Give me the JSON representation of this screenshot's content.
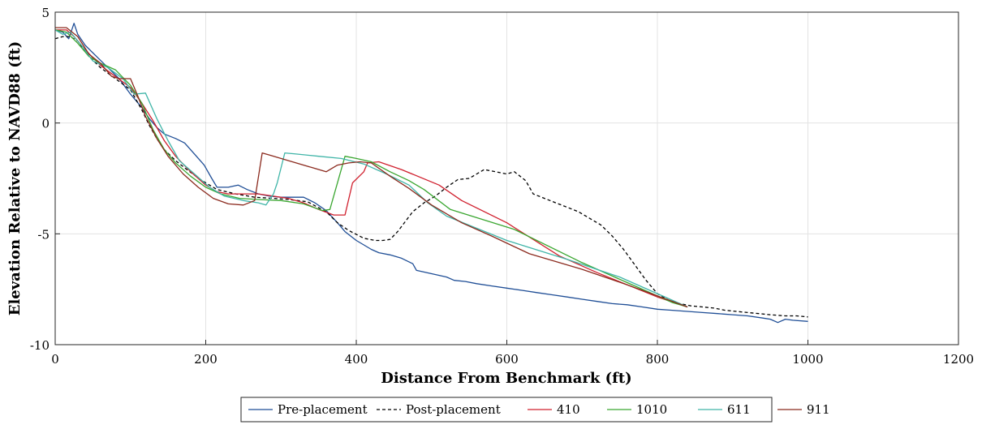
{
  "chart_data": {
    "type": "line",
    "title": "",
    "xlabel": "Distance From Benchmark (ft)",
    "ylabel": "Elevation Relative to NAVD88 (ft)",
    "xlim": [
      0,
      1200
    ],
    "ylim": [
      -10,
      5
    ],
    "xticks": [
      0,
      200,
      400,
      600,
      800,
      1000,
      1200
    ],
    "yticks": [
      5,
      0,
      -5,
      -10
    ],
    "xtick_labels": [
      "0",
      "200",
      "400",
      "600",
      "800",
      "1000",
      "1200"
    ],
    "ytick_labels": [
      "5",
      "0",
      "-5",
      "-10"
    ],
    "grid": true,
    "legend_position": "bottom-center",
    "series": [
      {
        "name": "Pre-placement",
        "color": "#1f4e96",
        "dash": "solid",
        "points": [
          [
            0,
            4.2
          ],
          [
            10,
            4.1
          ],
          [
            18,
            3.8
          ],
          [
            25,
            4.5
          ],
          [
            30,
            4.0
          ],
          [
            40,
            3.5
          ],
          [
            55,
            3.0
          ],
          [
            70,
            2.5
          ],
          [
            85,
            2.0
          ],
          [
            100,
            1.3
          ],
          [
            115,
            0.7
          ],
          [
            125,
            0.2
          ],
          [
            135,
            -0.2
          ],
          [
            145,
            -0.5
          ],
          [
            160,
            -0.7
          ],
          [
            172,
            -0.9
          ],
          [
            185,
            -1.4
          ],
          [
            198,
            -1.9
          ],
          [
            208,
            -2.5
          ],
          [
            215,
            -2.9
          ],
          [
            230,
            -2.9
          ],
          [
            243,
            -2.8
          ],
          [
            255,
            -3.0
          ],
          [
            270,
            -3.2
          ],
          [
            285,
            -3.3
          ],
          [
            300,
            -3.35
          ],
          [
            320,
            -3.35
          ],
          [
            330,
            -3.35
          ],
          [
            345,
            -3.6
          ],
          [
            360,
            -3.95
          ],
          [
            375,
            -4.5
          ],
          [
            385,
            -4.9
          ],
          [
            400,
            -5.3
          ],
          [
            410,
            -5.5
          ],
          [
            420,
            -5.7
          ],
          [
            430,
            -5.85
          ],
          [
            445,
            -5.95
          ],
          [
            460,
            -6.1
          ],
          [
            475,
            -6.35
          ],
          [
            480,
            -6.65
          ],
          [
            500,
            -6.8
          ],
          [
            520,
            -6.95
          ],
          [
            530,
            -7.1
          ],
          [
            545,
            -7.15
          ],
          [
            560,
            -7.25
          ],
          [
            580,
            -7.35
          ],
          [
            600,
            -7.45
          ],
          [
            620,
            -7.55
          ],
          [
            640,
            -7.65
          ],
          [
            660,
            -7.75
          ],
          [
            680,
            -7.85
          ],
          [
            700,
            -7.95
          ],
          [
            720,
            -8.05
          ],
          [
            740,
            -8.15
          ],
          [
            760,
            -8.2
          ],
          [
            780,
            -8.3
          ],
          [
            800,
            -8.4
          ],
          [
            820,
            -8.45
          ],
          [
            840,
            -8.5
          ],
          [
            860,
            -8.55
          ],
          [
            880,
            -8.6
          ],
          [
            900,
            -8.65
          ],
          [
            920,
            -8.7
          ],
          [
            940,
            -8.8
          ],
          [
            950,
            -8.85
          ],
          [
            960,
            -9.0
          ],
          [
            970,
            -8.85
          ],
          [
            980,
            -8.9
          ],
          [
            1000,
            -8.95
          ]
        ]
      },
      {
        "name": "Post-placement",
        "color": "#000000",
        "dash": "dashed",
        "points": [
          [
            0,
            3.8
          ],
          [
            10,
            3.9
          ],
          [
            20,
            3.9
          ],
          [
            30,
            3.7
          ],
          [
            45,
            3.0
          ],
          [
            60,
            2.5
          ],
          [
            80,
            2.0
          ],
          [
            100,
            1.5
          ],
          [
            115,
            0.6
          ],
          [
            125,
            -0.1
          ],
          [
            135,
            -0.7
          ],
          [
            145,
            -1.2
          ],
          [
            160,
            -1.7
          ],
          [
            175,
            -2.1
          ],
          [
            195,
            -2.6
          ],
          [
            215,
            -3.0
          ],
          [
            240,
            -3.2
          ],
          [
            265,
            -3.35
          ],
          [
            290,
            -3.4
          ],
          [
            310,
            -3.45
          ],
          [
            335,
            -3.55
          ],
          [
            360,
            -4.0
          ],
          [
            375,
            -4.5
          ],
          [
            390,
            -4.85
          ],
          [
            410,
            -5.2
          ],
          [
            425,
            -5.3
          ],
          [
            435,
            -5.3
          ],
          [
            445,
            -5.25
          ],
          [
            455,
            -4.9
          ],
          [
            465,
            -4.45
          ],
          [
            475,
            -4.0
          ],
          [
            490,
            -3.6
          ],
          [
            505,
            -3.3
          ],
          [
            520,
            -2.9
          ],
          [
            535,
            -2.55
          ],
          [
            550,
            -2.5
          ],
          [
            560,
            -2.3
          ],
          [
            570,
            -2.1
          ],
          [
            585,
            -2.2
          ],
          [
            600,
            -2.3
          ],
          [
            610,
            -2.2
          ],
          [
            625,
            -2.6
          ],
          [
            635,
            -3.2
          ],
          [
            650,
            -3.4
          ],
          [
            665,
            -3.6
          ],
          [
            680,
            -3.8
          ],
          [
            695,
            -4.0
          ],
          [
            710,
            -4.3
          ],
          [
            725,
            -4.6
          ],
          [
            740,
            -5.1
          ],
          [
            755,
            -5.7
          ],
          [
            770,
            -6.4
          ],
          [
            785,
            -7.1
          ],
          [
            800,
            -7.7
          ],
          [
            815,
            -8.0
          ],
          [
            830,
            -8.15
          ],
          [
            845,
            -8.25
          ],
          [
            860,
            -8.3
          ],
          [
            875,
            -8.35
          ],
          [
            890,
            -8.45
          ],
          [
            905,
            -8.5
          ],
          [
            920,
            -8.55
          ],
          [
            935,
            -8.6
          ],
          [
            950,
            -8.65
          ],
          [
            970,
            -8.7
          ],
          [
            985,
            -8.7
          ],
          [
            1000,
            -8.75
          ]
        ]
      },
      {
        "name": "410",
        "color": "#d0202e",
        "dash": "solid",
        "points": [
          [
            0,
            4.2
          ],
          [
            15,
            4.2
          ],
          [
            25,
            3.9
          ],
          [
            40,
            3.3
          ],
          [
            60,
            2.6
          ],
          [
            80,
            2.1
          ],
          [
            100,
            1.6
          ],
          [
            115,
            0.9
          ],
          [
            130,
            0.1
          ],
          [
            145,
            -0.8
          ],
          [
            160,
            -1.5
          ],
          [
            180,
            -2.2
          ],
          [
            200,
            -2.8
          ],
          [
            215,
            -3.1
          ],
          [
            230,
            -3.2
          ],
          [
            250,
            -3.2
          ],
          [
            270,
            -3.2
          ],
          [
            290,
            -3.3
          ],
          [
            310,
            -3.4
          ],
          [
            330,
            -3.6
          ],
          [
            350,
            -3.9
          ],
          [
            370,
            -4.15
          ],
          [
            385,
            -4.15
          ],
          [
            395,
            -2.7
          ],
          [
            410,
            -2.2
          ],
          [
            415,
            -1.8
          ],
          [
            430,
            -1.75
          ],
          [
            460,
            -2.1
          ],
          [
            510,
            -2.8
          ],
          [
            540,
            -3.5
          ],
          [
            600,
            -4.5
          ],
          [
            670,
            -6.0
          ],
          [
            720,
            -6.75
          ],
          [
            800,
            -7.85
          ],
          [
            840,
            -8.3
          ]
        ]
      },
      {
        "name": "1010",
        "color": "#3aa630",
        "dash": "solid",
        "points": [
          [
            0,
            4.2
          ],
          [
            15,
            4.1
          ],
          [
            30,
            3.6
          ],
          [
            45,
            3.0
          ],
          [
            60,
            2.7
          ],
          [
            80,
            2.4
          ],
          [
            100,
            1.7
          ],
          [
            115,
            0.9
          ],
          [
            130,
            -0.3
          ],
          [
            145,
            -1.2
          ],
          [
            160,
            -1.8
          ],
          [
            180,
            -2.4
          ],
          [
            200,
            -2.9
          ],
          [
            220,
            -3.2
          ],
          [
            245,
            -3.4
          ],
          [
            270,
            -3.45
          ],
          [
            300,
            -3.5
          ],
          [
            330,
            -3.65
          ],
          [
            355,
            -3.95
          ],
          [
            365,
            -3.9
          ],
          [
            385,
            -1.5
          ],
          [
            400,
            -1.6
          ],
          [
            420,
            -1.75
          ],
          [
            445,
            -2.2
          ],
          [
            470,
            -2.6
          ],
          [
            490,
            -3.0
          ],
          [
            525,
            -3.9
          ],
          [
            610,
            -4.8
          ],
          [
            700,
            -6.3
          ],
          [
            760,
            -7.2
          ],
          [
            820,
            -8.1
          ],
          [
            840,
            -8.3
          ]
        ]
      },
      {
        "name": "611",
        "color": "#40b5a8",
        "dash": "solid",
        "points": [
          [
            0,
            4.2
          ],
          [
            10,
            4.0
          ],
          [
            20,
            4.1
          ],
          [
            35,
            3.5
          ],
          [
            50,
            2.8
          ],
          [
            70,
            2.5
          ],
          [
            90,
            2.0
          ],
          [
            105,
            1.3
          ],
          [
            120,
            1.35
          ],
          [
            135,
            0.2
          ],
          [
            150,
            -0.8
          ],
          [
            165,
            -1.7
          ],
          [
            185,
            -2.3
          ],
          [
            205,
            -2.9
          ],
          [
            225,
            -3.3
          ],
          [
            250,
            -3.5
          ],
          [
            270,
            -3.6
          ],
          [
            280,
            -3.7
          ],
          [
            290,
            -3.2
          ],
          [
            295,
            -2.7
          ],
          [
            305,
            -1.35
          ],
          [
            320,
            -1.4
          ],
          [
            350,
            -1.5
          ],
          [
            380,
            -1.6
          ],
          [
            410,
            -1.85
          ],
          [
            440,
            -2.3
          ],
          [
            470,
            -2.8
          ],
          [
            495,
            -3.6
          ],
          [
            520,
            -4.2
          ],
          [
            600,
            -5.3
          ],
          [
            680,
            -6.15
          ],
          [
            750,
            -6.95
          ],
          [
            840,
            -8.3
          ]
        ]
      },
      {
        "name": "911",
        "color": "#8b2a1e",
        "dash": "solid",
        "points": [
          [
            0,
            4.3
          ],
          [
            15,
            4.3
          ],
          [
            30,
            3.9
          ],
          [
            45,
            3.1
          ],
          [
            60,
            2.7
          ],
          [
            75,
            2.1
          ],
          [
            85,
            2.0
          ],
          [
            100,
            2.0
          ],
          [
            110,
            1.2
          ],
          [
            120,
            0.3
          ],
          [
            135,
            -0.7
          ],
          [
            150,
            -1.5
          ],
          [
            170,
            -2.3
          ],
          [
            190,
            -2.9
          ],
          [
            210,
            -3.4
          ],
          [
            230,
            -3.65
          ],
          [
            250,
            -3.7
          ],
          [
            265,
            -3.5
          ],
          [
            275,
            -1.35
          ],
          [
            285,
            -1.45
          ],
          [
            310,
            -1.7
          ],
          [
            340,
            -2.0
          ],
          [
            360,
            -2.2
          ],
          [
            375,
            -1.9
          ],
          [
            390,
            -1.8
          ],
          [
            405,
            -1.75
          ],
          [
            420,
            -1.8
          ],
          [
            445,
            -2.4
          ],
          [
            470,
            -2.95
          ],
          [
            500,
            -3.7
          ],
          [
            540,
            -4.5
          ],
          [
            580,
            -5.1
          ],
          [
            630,
            -5.9
          ],
          [
            700,
            -6.6
          ],
          [
            760,
            -7.3
          ],
          [
            840,
            -8.3
          ]
        ]
      }
    ]
  }
}
